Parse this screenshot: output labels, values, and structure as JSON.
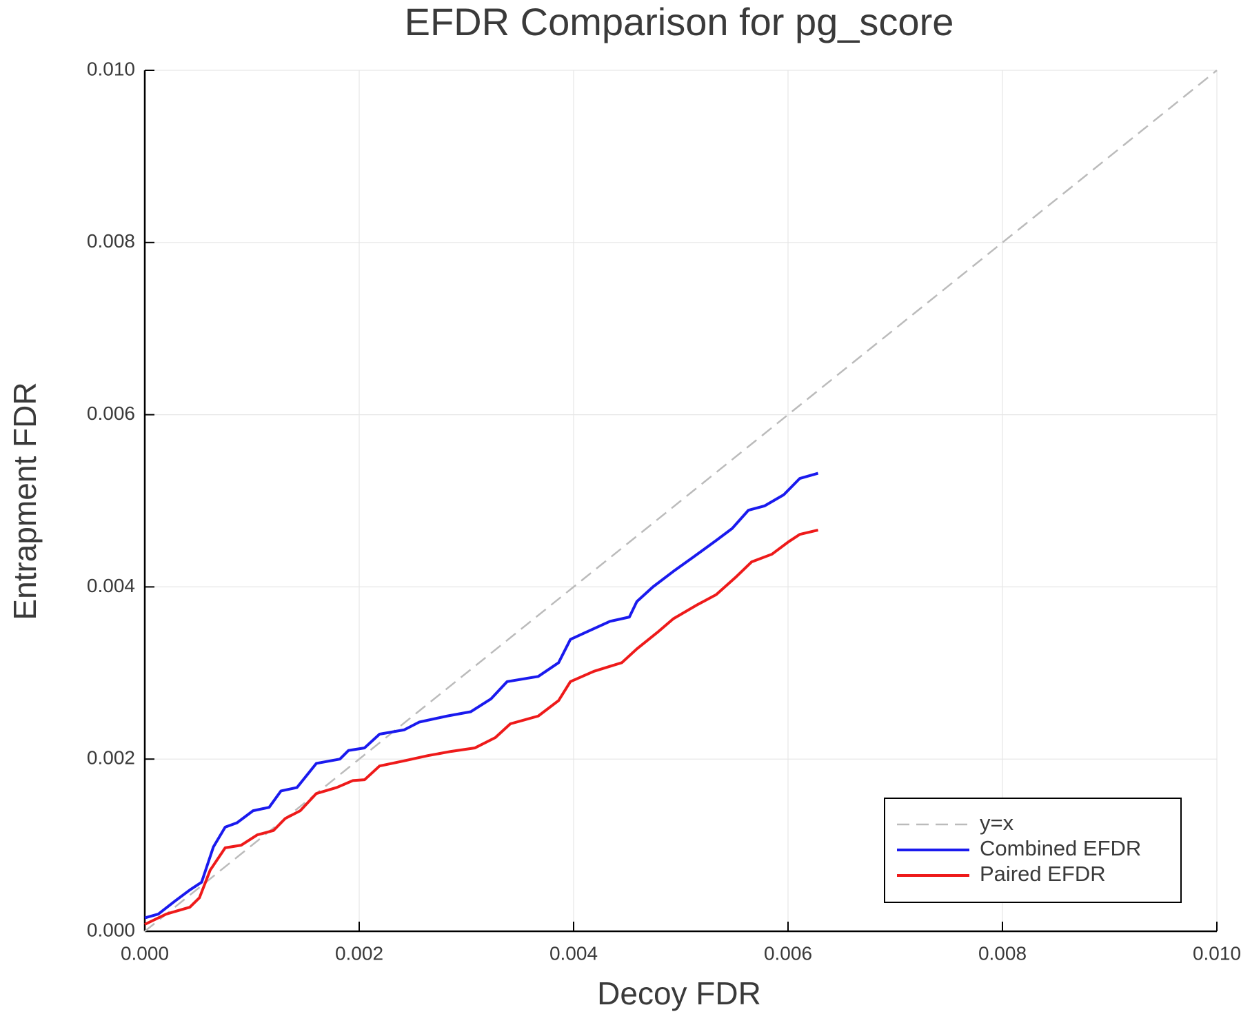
{
  "chart_data": {
    "type": "line",
    "title": "EFDR Comparison for pg_score",
    "x_label": "Decoy FDR",
    "y_label": "Entrapment FDR",
    "xlim": [
      0,
      0.01
    ],
    "ylim": [
      0,
      0.01
    ],
    "xticks": [
      {
        "value": 0,
        "label": "0.000"
      },
      0.002,
      0.004,
      0.006,
      0.008,
      {
        "value": 0.01,
        "label": "0.010"
      }
    ],
    "yticks": [
      {
        "value": 0,
        "label": "0.000"
      },
      0.002,
      0.004,
      0.006,
      0.008,
      {
        "value": 0.01,
        "label": "0.010"
      }
    ],
    "grid": true,
    "legend": "lower right",
    "series": [
      {
        "name": "y=x",
        "color": "#bbbbbb",
        "dash": true,
        "x": [
          0,
          0.01
        ],
        "values": [
          0,
          0.01
        ]
      },
      {
        "name": "Combined EFDR",
        "color": "#1a1aee",
        "x": [
          0,
          0.000126,
          0.00027,
          0.00042,
          0.00053,
          0.00064,
          0.00075,
          0.00086,
          0.00101,
          0.00116,
          0.00127,
          0.00142,
          0.0016,
          0.00182,
          0.0019,
          0.00205,
          0.00219,
          0.00242,
          0.00256,
          0.00282,
          0.00304,
          0.00323,
          0.00338,
          0.00367,
          0.00386,
          0.00397,
          0.00411,
          0.00434,
          0.00452,
          0.00459,
          0.00474,
          0.00493,
          0.00511,
          0.00533,
          0.00548,
          0.00563,
          0.00578,
          0.00596,
          0.00611,
          0.00628
        ],
        "values": [
          0.000156,
          0.0002,
          0.00034,
          0.00048,
          0.00057,
          0.00098,
          0.00121,
          0.00126,
          0.0014,
          0.00144,
          0.00163,
          0.00167,
          0.00195,
          0.002,
          0.0021,
          0.00213,
          0.00229,
          0.00234,
          0.00243,
          0.0025,
          0.00255,
          0.0027,
          0.0029,
          0.00296,
          0.00312,
          0.00339,
          0.00347,
          0.0036,
          0.00365,
          0.00383,
          0.004,
          0.00418,
          0.00434,
          0.00454,
          0.00468,
          0.00489,
          0.00494,
          0.00507,
          0.00526,
          0.00532
        ]
      },
      {
        "name": "Paired EFDR",
        "color": "#ee1a1a",
        "x": [
          0,
          0.0002,
          0.00042,
          0.00051,
          0.00061,
          0.00075,
          0.0009,
          0.00105,
          0.0012,
          0.00131,
          0.00145,
          0.0016,
          0.00179,
          0.00194,
          0.00205,
          0.00219,
          0.00242,
          0.00264,
          0.00286,
          0.00308,
          0.00327,
          0.00341,
          0.00367,
          0.00386,
          0.00397,
          0.00419,
          0.00445,
          0.00459,
          0.00478,
          0.00493,
          0.00515,
          0.00533,
          0.00551,
          0.00566,
          0.00585,
          0.006,
          0.00611,
          0.00628
        ],
        "values": [
          8e-05,
          0.0002,
          0.00028,
          0.00039,
          0.00071,
          0.00097,
          0.001,
          0.00112,
          0.00117,
          0.00131,
          0.0014,
          0.0016,
          0.00167,
          0.00175,
          0.00176,
          0.00192,
          0.00198,
          0.00204,
          0.00209,
          0.00213,
          0.00225,
          0.00241,
          0.0025,
          0.00268,
          0.0029,
          0.00302,
          0.00312,
          0.00328,
          0.00347,
          0.00363,
          0.00379,
          0.00391,
          0.00411,
          0.00429,
          0.00438,
          0.00452,
          0.00461,
          0.00466
        ]
      }
    ]
  }
}
